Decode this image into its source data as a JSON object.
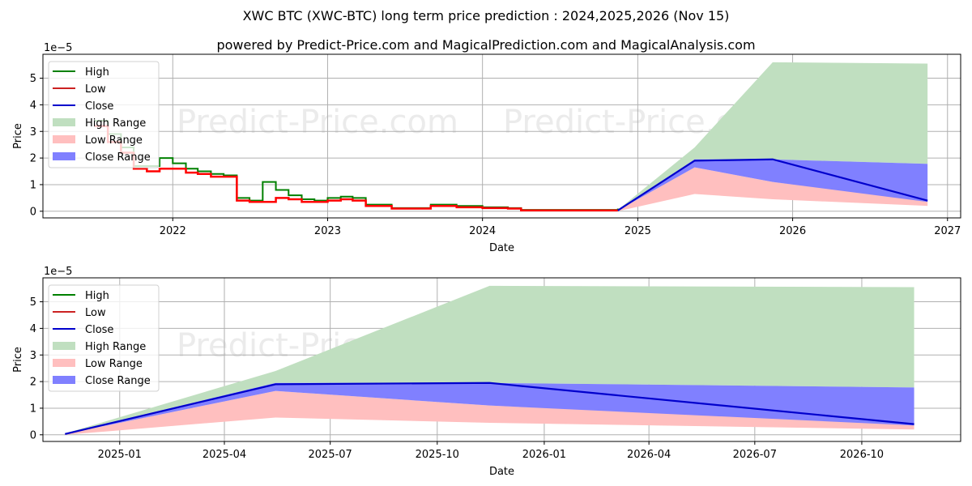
{
  "header": {
    "title": "XWC BTC (XWC-BTC) long term price prediction : 2024,2025,2026 (Nov 15)",
    "subtitle": "powered by Predict-Price.com and MagicalPrediction.com and MagicalAnalysis.com"
  },
  "watermark": "Predict-Price.com",
  "colors": {
    "high": "#008000",
    "low": "#ff0000",
    "close": "#0000cc",
    "high_range": "#c0dfc0",
    "low_range": "#ffbfbf",
    "close_range": "#8080ff",
    "grid": "#b0b0b0"
  },
  "legend": [
    {
      "label": "High",
      "kind": "line",
      "color": "#008000"
    },
    {
      "label": "Low",
      "kind": "line",
      "color": "#cc2222"
    },
    {
      "label": "Close",
      "kind": "line",
      "color": "#0000cc"
    },
    {
      "label": "High Range",
      "kind": "patch",
      "color": "#c0dfc0"
    },
    {
      "label": "Low Range",
      "kind": "patch",
      "color": "#ffbfbf"
    },
    {
      "label": "Close Range",
      "kind": "patch",
      "color": "#8080ff"
    }
  ],
  "chart_data": [
    {
      "type": "line",
      "title": "XWC BTC (XWC-BTC) long term price prediction : 2024,2025,2026 (Nov 15)",
      "xlabel": "Date",
      "ylabel": "Price",
      "y_scale_label": "1e−5",
      "ylim": [
        -0.25,
        5.9
      ],
      "y_ticks": [
        0,
        1,
        2,
        3,
        4,
        5
      ],
      "x_ticks": [
        "2022",
        "2023",
        "2024",
        "2025",
        "2026",
        "2027"
      ],
      "xlim": [
        "2021-03",
        "2027-02"
      ],
      "grid": true,
      "legend_position": "upper left",
      "history": {
        "note": "values in units of 1e-5 BTC",
        "x": [
          "2021-07-01",
          "2021-08-01",
          "2021-09-01",
          "2021-10-01",
          "2021-11-01",
          "2021-12-01",
          "2022-01-01",
          "2022-02-01",
          "2022-03-01",
          "2022-04-01",
          "2022-05-01",
          "2022-06-01",
          "2022-07-01",
          "2022-08-01",
          "2022-09-01",
          "2022-10-01",
          "2022-11-01",
          "2022-12-01",
          "2023-01-01",
          "2023-02-01",
          "2023-03-01",
          "2023-04-01",
          "2023-06-01",
          "2023-08-01",
          "2023-09-01",
          "2023-10-01",
          "2023-11-01",
          "2023-12-01",
          "2024-01-01",
          "2024-03-01",
          "2024-04-01",
          "2024-06-01",
          "2024-09-01",
          "2024-11-15"
        ],
        "low": [
          3.2,
          2.6,
          2.2,
          1.6,
          1.5,
          1.6,
          1.6,
          1.45,
          1.4,
          1.3,
          1.3,
          0.4,
          0.35,
          0.35,
          0.5,
          0.45,
          0.35,
          0.35,
          0.4,
          0.45,
          0.4,
          0.2,
          0.1,
          0.1,
          0.2,
          0.2,
          0.15,
          0.15,
          0.12,
          0.1,
          0.03,
          0.03,
          0.03,
          0.03
        ],
        "high": [
          3.4,
          2.9,
          2.4,
          1.7,
          1.7,
          2.0,
          1.8,
          1.6,
          1.5,
          1.4,
          1.35,
          0.5,
          0.4,
          1.1,
          0.8,
          0.6,
          0.45,
          0.4,
          0.5,
          0.55,
          0.5,
          0.25,
          0.12,
          0.12,
          0.25,
          0.25,
          0.2,
          0.2,
          0.15,
          0.12,
          0.05,
          0.05,
          0.05,
          0.1
        ]
      },
      "forecast": {
        "x": [
          "2024-11-15",
          "2025-05-15",
          "2025-11-15",
          "2026-11-15"
        ],
        "close": [
          0.03,
          1.9,
          1.95,
          0.4
        ],
        "high_range": {
          "upper": [
            0.05,
            2.4,
            5.6,
            5.55
          ],
          "lower": [
            0.03,
            1.95,
            1.95,
            1.78
          ]
        },
        "close_range": {
          "upper": [
            0.05,
            1.95,
            1.95,
            1.78
          ],
          "lower": [
            0.03,
            1.65,
            1.1,
            0.35
          ]
        },
        "low_range": {
          "upper": [
            0.03,
            1.65,
            1.1,
            0.4
          ],
          "lower": [
            0.0,
            0.65,
            0.45,
            0.2
          ]
        }
      }
    },
    {
      "type": "line",
      "title": "",
      "xlabel": "Date",
      "ylabel": "Price",
      "y_scale_label": "1e−5",
      "ylim": [
        -0.25,
        5.9
      ],
      "y_ticks": [
        0,
        1,
        2,
        3,
        4,
        5
      ],
      "x_ticks": [
        "2025-01",
        "2025-04",
        "2025-07",
        "2025-10",
        "2026-01",
        "2026-04",
        "2026-07",
        "2026-10"
      ],
      "xlim": [
        "2024-10-27",
        "2026-12-25"
      ],
      "grid": true,
      "legend_position": "upper left",
      "forecast": {
        "x": [
          "2024-11-15",
          "2025-05-15",
          "2025-11-15",
          "2026-11-15"
        ],
        "close": [
          0.03,
          1.9,
          1.95,
          0.4
        ],
        "high_range": {
          "upper": [
            0.05,
            2.4,
            5.6,
            5.55
          ],
          "lower": [
            0.03,
            1.95,
            1.95,
            1.78
          ]
        },
        "close_range": {
          "upper": [
            0.05,
            1.95,
            1.95,
            1.78
          ],
          "lower": [
            0.03,
            1.65,
            1.1,
            0.35
          ]
        },
        "low_range": {
          "upper": [
            0.03,
            1.65,
            1.1,
            0.4
          ],
          "lower": [
            0.0,
            0.65,
            0.45,
            0.2
          ]
        }
      }
    }
  ]
}
